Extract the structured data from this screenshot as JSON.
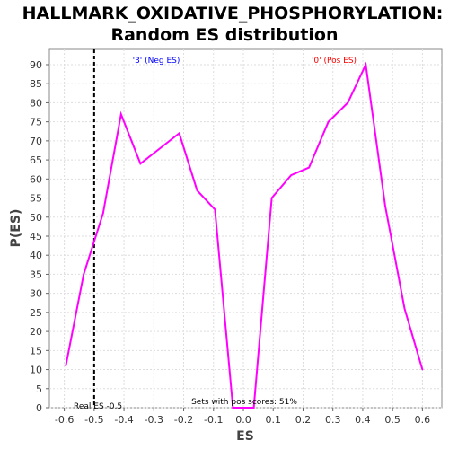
{
  "chart_data": {
    "type": "line",
    "title": "HALLMARK_OXIDATIVE_PHOSPHORYLATION:",
    "subtitle": "Random ES distribution",
    "xlabel": "ES",
    "ylabel": "P(ES)",
    "xlim": [
      -0.65,
      0.665
    ],
    "ylim": [
      0,
      94
    ],
    "x_ticks": [
      "-0.6",
      "-0.5",
      "-0.4",
      "-0.3",
      "-0.2",
      "-0.1",
      "0.0",
      "0.1",
      "0.2",
      "0.3",
      "0.4",
      "0.5",
      "0.6"
    ],
    "y_ticks": [
      "0",
      "5",
      "10",
      "15",
      "20",
      "25",
      "30",
      "35",
      "40",
      "45",
      "50",
      "55",
      "60",
      "65",
      "70",
      "75",
      "80",
      "85",
      "90"
    ],
    "grid": true,
    "series": [
      {
        "color": "#ff00ff",
        "x": [
          -0.595,
          -0.535,
          -0.47,
          -0.41,
          -0.345,
          -0.215,
          -0.155,
          -0.095,
          -0.035,
          0.035,
          0.095,
          0.16,
          0.22,
          0.285,
          0.35,
          0.41,
          0.475,
          0.54,
          0.6
        ],
        "y": [
          11,
          35,
          51,
          77,
          64,
          72,
          57,
          52,
          0,
          0,
          55,
          61,
          63,
          75,
          80,
          90,
          53,
          26,
          10
        ]
      }
    ],
    "real_es": {
      "x": -0.5,
      "label": "Real ES -0.5"
    },
    "annotations": {
      "neg_label": "'3' (Neg ES)",
      "pos_label": "'0' (Pos ES)",
      "pos_scores": "Sets with pos scores: 51%"
    },
    "colors": {
      "neg": "#0000ff",
      "pos": "#ff0000",
      "line": "#ff00ff",
      "grid": "#dddddd"
    }
  }
}
